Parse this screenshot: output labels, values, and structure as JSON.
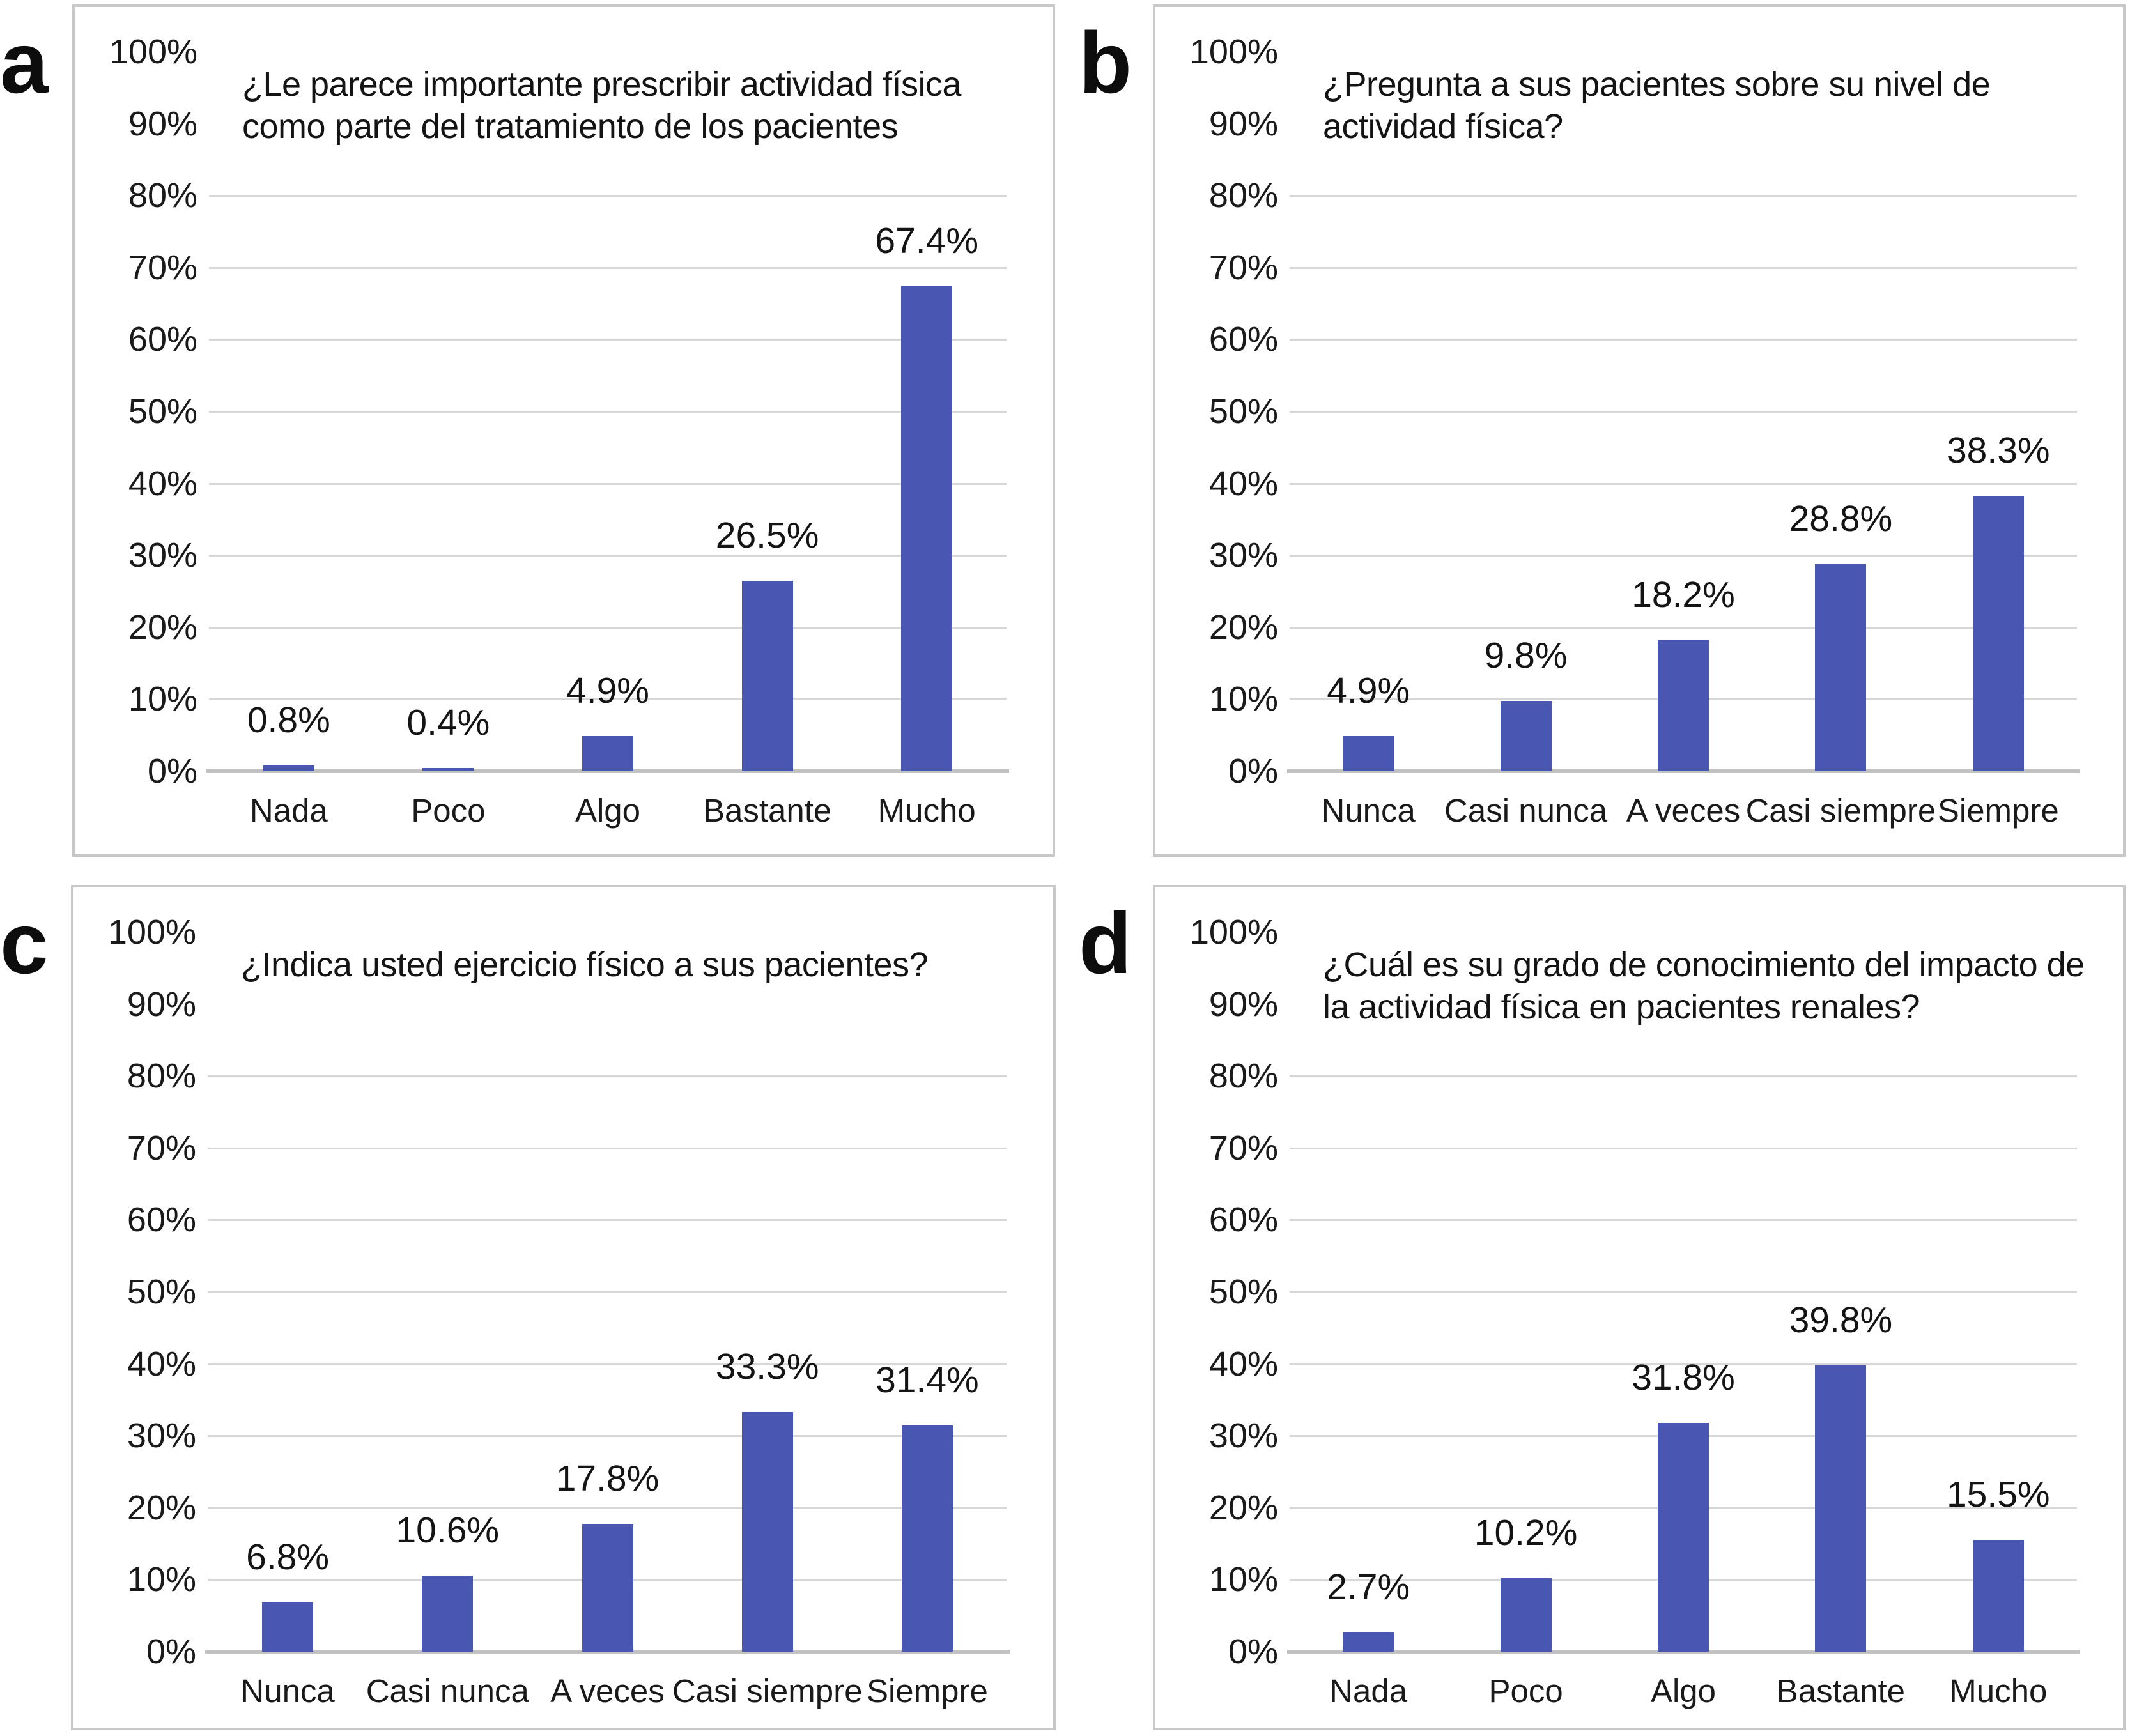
{
  "figure": {
    "background": "#ffffff",
    "bar_color": "#4a57b2",
    "gridline_color": "#d7d7d7",
    "baseline_color": "#c2c2c2",
    "panel_border_color": "#c8c8c8",
    "text_color": "#1a1a1a"
  },
  "axis": {
    "ylim": [
      0,
      100
    ],
    "tick_values": [
      0,
      10,
      20,
      30,
      40,
      50,
      60,
      70,
      80,
      90,
      100
    ],
    "tick_labels": [
      "0%",
      "10%",
      "20%",
      "30%",
      "40%",
      "50%",
      "60%",
      "70%",
      "80%",
      "90%",
      "100%"
    ],
    "gridline_values": [
      10,
      20,
      30,
      40,
      50,
      60,
      70,
      80
    ],
    "grid": "horizontal only"
  },
  "chart_data": {
    "type": "bar",
    "layout": "2x2 lettered panels",
    "panels": [
      {
        "panel_label": "a",
        "title_lines": [
          "¿Le parece importante prescribir actividad física",
          "como parte del tratamiento de los pacientes"
        ],
        "title": "¿Le parece importante prescribir actividad física como parte del tratamiento de los pacientes",
        "categories": [
          "Nada",
          "Poco",
          "Algo",
          "Bastante",
          "Mucho"
        ],
        "values": [
          0.8,
          0.4,
          4.9,
          26.5,
          67.4
        ],
        "value_labels": [
          "0.8%",
          "0.4%",
          "4.9%",
          "26.5%",
          "67.4%"
        ]
      },
      {
        "panel_label": "b",
        "title_lines": [
          "¿Pregunta a sus pacientes sobre su nivel de",
          "actividad física?"
        ],
        "title": "¿Pregunta a sus pacientes sobre su nivel de actividad física?",
        "categories": [
          "Nunca",
          "Casi nunca",
          "A veces",
          "Casi siempre",
          "Siempre"
        ],
        "values": [
          4.9,
          9.8,
          18.2,
          28.8,
          38.3
        ],
        "value_labels": [
          "4.9%",
          "9.8%",
          "18.2%",
          "28.8%",
          "38.3%"
        ]
      },
      {
        "panel_label": "c",
        "title_lines": [
          "¿Indica usted ejercicio físico a sus pacientes?"
        ],
        "title": "¿Indica usted ejercicio físico a sus pacientes?",
        "categories": [
          "Nunca",
          "Casi nunca",
          "A veces",
          "Casi siempre",
          "Siempre"
        ],
        "values": [
          6.8,
          10.6,
          17.8,
          33.3,
          31.4
        ],
        "value_labels": [
          "6.8%",
          "10.6%",
          "17.8%",
          "33.3%",
          "31.4%"
        ]
      },
      {
        "panel_label": "d",
        "title_lines": [
          "¿Cuál es su grado de conocimiento del impacto de",
          "la actividad física en pacientes renales?"
        ],
        "title": "¿Cuál es su grado de conocimiento del impacto de la actividad física en pacientes renales?",
        "categories": [
          "Nada",
          "Poco",
          "Algo",
          "Bastante",
          "Mucho"
        ],
        "values": [
          2.7,
          10.2,
          31.8,
          39.8,
          15.5
        ],
        "value_labels": [
          "2.7%",
          "10.2%",
          "31.8%",
          "39.8%",
          "15.5%"
        ]
      }
    ]
  }
}
